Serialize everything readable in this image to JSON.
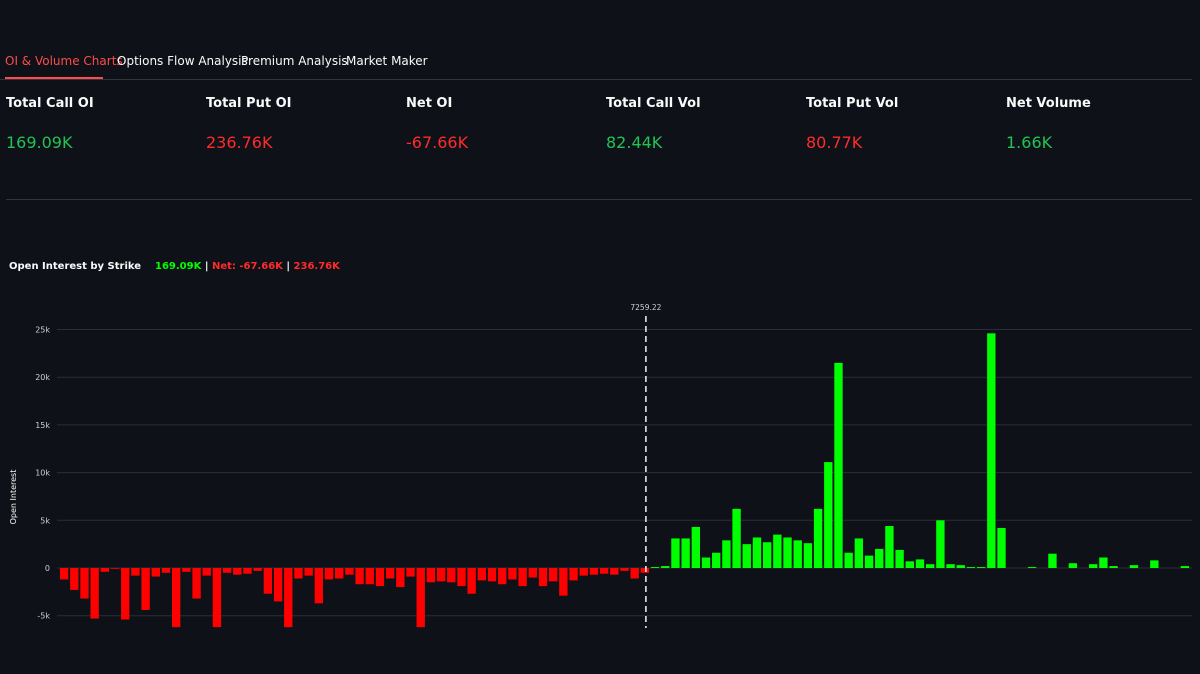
{
  "tabs": [
    {
      "label": "OI & Volume Charts",
      "active": true
    },
    {
      "label": "Options Flow Analysis",
      "active": false
    },
    {
      "label": "Premium Analysis",
      "active": false
    },
    {
      "label": "Market Maker",
      "active": false
    }
  ],
  "metrics": [
    {
      "label": "Total Call OI",
      "value": "169.09K",
      "color": "#21c354"
    },
    {
      "label": "Total Put OI",
      "value": "236.76K",
      "color": "#ff2b2b"
    },
    {
      "label": "Net OI",
      "value": "-67.66K",
      "color": "#ff2b2b"
    },
    {
      "label": "Total Call Vol",
      "value": "82.44K",
      "color": "#21c354"
    },
    {
      "label": "Total Put Vol",
      "value": "80.77K",
      "color": "#ff2b2b"
    },
    {
      "label": "Net Volume",
      "value": "1.66K",
      "color": "#21c354"
    }
  ],
  "chart_header": {
    "title": "Open Interest by Strike",
    "calls": "169.09K",
    "separator": "|",
    "net": "Net: -67.66K",
    "puts": "236.76K"
  },
  "chart_data": {
    "type": "bar",
    "ylabel": "Open Interest",
    "ylim": [
      -6500,
      25500
    ],
    "yticks": [
      -5000,
      0,
      5000,
      10000,
      15000,
      20000,
      25000
    ],
    "ytick_labels": [
      "-5k",
      "0",
      "5k",
      "10k",
      "15k",
      "20k",
      "25k"
    ],
    "grid": true,
    "spot_label": "7259.22",
    "colors": {
      "calls": "#00ff00",
      "puts": "#ff0000"
    },
    "series": [
      {
        "name": "puts",
        "values": [
          -1200,
          -2300,
          -3200,
          -5300,
          -400,
          -50,
          -5400,
          -800,
          -4400,
          -900,
          -500,
          -6200,
          -400,
          -3200,
          -800,
          -6200,
          -500,
          -700,
          -600,
          -300,
          -2700,
          -3500,
          -6200,
          -1100,
          -800,
          -3700,
          -1200,
          -1100,
          -700,
          -1700,
          -1700,
          -1900,
          -1100,
          -2000,
          -900,
          -6200,
          -1500,
          -1400,
          -1500,
          -1900,
          -2700,
          -1300,
          -1400,
          -1700,
          -1200,
          -1900,
          -1000,
          -1900,
          -1400,
          -2900,
          -1300,
          -800,
          -700,
          -600,
          -700,
          -300,
          -1100,
          -500
        ],
        "x_index_start": 0
      },
      {
        "name": "calls",
        "values": [
          100,
          200,
          3100,
          3100,
          4300,
          1100,
          1600,
          2900,
          6200,
          2500,
          3200,
          2700,
          3500,
          3200,
          2900,
          2600,
          6200,
          11100,
          21500,
          1600,
          3100,
          1300,
          2000,
          4400,
          1900,
          700,
          900,
          400,
          5000,
          400,
          300,
          100,
          100,
          24600,
          4200,
          0,
          0,
          100,
          0,
          1500,
          0,
          500,
          0,
          400,
          1100,
          200,
          0,
          300,
          0,
          800,
          0,
          0,
          200
        ],
        "x_index_start": 58
      }
    ],
    "call_first_small": 100,
    "zero_call_at_index": 57
  }
}
